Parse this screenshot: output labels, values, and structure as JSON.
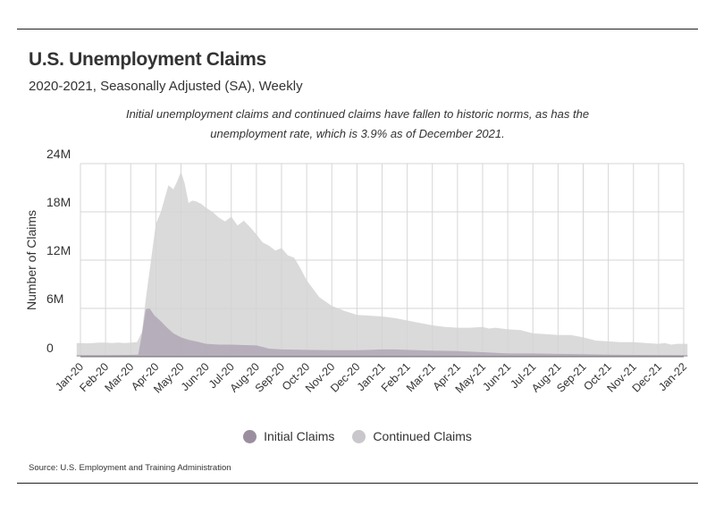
{
  "header": {
    "title": "U.S. Unemployment Claims",
    "subtitle": "2020-2021, Seasonally Adjusted (SA), Weekly",
    "annotation": "Initial unemployment claims and continued claims have fallen to historic norms, as has the unemployment rate, which is 3.9% as of December 2021."
  },
  "footer": {
    "source": "Source: U.S. Employment and Training Administration"
  },
  "colors": {
    "initial": "#b3a9b7",
    "continued": "#d4d4d4",
    "grid": "#d6d6d6",
    "axis": "#666666",
    "text": "#333333"
  },
  "chart_data": {
    "type": "area",
    "title": "U.S. Unemployment Claims",
    "subtitle": "2020-2021, Seasonally Adjusted (SA), Weekly",
    "xlabel": "",
    "ylabel": "Number of Claims",
    "ylim": [
      0,
      24
    ],
    "y_unit": "millions",
    "yticks": [
      0,
      6,
      12,
      18,
      24
    ],
    "ytick_labels": [
      "0",
      "6M",
      "12M",
      "18M",
      "24M"
    ],
    "x_range": [
      0,
      24
    ],
    "x_ticks": [
      0,
      1,
      2,
      3,
      4,
      5,
      6,
      7,
      8,
      9,
      10,
      11,
      12,
      13,
      14,
      15,
      16,
      17,
      18,
      19,
      20,
      21,
      22,
      23,
      24
    ],
    "x_tick_labels": [
      "Jan-20",
      "Feb-20",
      "Mar-20",
      "Apr-20",
      "May-20",
      "Jun-20",
      "Jul-20",
      "Aug-20",
      "Sep-20",
      "Oct-20",
      "Nov-20",
      "Dec-20",
      "Jan-21",
      "Feb-21",
      "Mar-21",
      "Apr-21",
      "May-21",
      "Jun-21",
      "Jul-21",
      "Aug-21",
      "Sep-21",
      "Oct-21",
      "Nov-21",
      "Dec-21",
      "Jan-22"
    ],
    "grid": true,
    "legend": "bottom-center",
    "series": [
      {
        "name": "Continued Claims",
        "x": [
          -0.15,
          0,
          0.25,
          0.5,
          0.75,
          1,
          1.25,
          1.5,
          1.75,
          2,
          2.25,
          2.45,
          2.6,
          2.8,
          3,
          3.2,
          3.5,
          3.7,
          3.85,
          4,
          4.15,
          4.3,
          4.45,
          4.6,
          4.8,
          5,
          5.25,
          5.5,
          5.75,
          6,
          6.25,
          6.5,
          6.75,
          7,
          7.25,
          7.5,
          7.75,
          8,
          8.25,
          8.5,
          8.75,
          9,
          9.5,
          10,
          10.5,
          11,
          11.5,
          12,
          12.5,
          13,
          13.5,
          14,
          14.5,
          15,
          15.5,
          16,
          16.25,
          16.5,
          17,
          17.5,
          18,
          18.5,
          19,
          19.5,
          20,
          20.5,
          21,
          21.5,
          22,
          22.5,
          23,
          23.25,
          23.5,
          23.75,
          24,
          24.15
        ],
        "values": [
          1.7,
          1.7,
          1.65,
          1.7,
          1.75,
          1.75,
          1.7,
          1.75,
          1.7,
          1.75,
          1.8,
          3.1,
          7.2,
          11.8,
          16.5,
          18.0,
          21.3,
          20.8,
          21.8,
          23.0,
          21.5,
          19.1,
          19.4,
          19.3,
          19.0,
          18.5,
          18.0,
          17.3,
          16.8,
          17.4,
          16.3,
          16.9,
          16.1,
          15.2,
          14.2,
          13.8,
          13.2,
          13.5,
          12.6,
          12.3,
          11.0,
          9.5,
          7.4,
          6.3,
          5.7,
          5.2,
          5.1,
          5.0,
          4.8,
          4.5,
          4.2,
          3.9,
          3.7,
          3.6,
          3.6,
          3.7,
          3.5,
          3.6,
          3.4,
          3.3,
          2.9,
          2.8,
          2.7,
          2.7,
          2.4,
          2.0,
          1.9,
          1.8,
          1.8,
          1.7,
          1.6,
          1.7,
          1.5,
          1.6,
          1.6,
          1.6
        ]
      },
      {
        "name": "Initial Claims",
        "x": [
          -0.15,
          0,
          1,
          2,
          2.3,
          2.45,
          2.6,
          2.75,
          2.95,
          3.2,
          3.45,
          3.7,
          4,
          4.3,
          4.6,
          5,
          5.5,
          6,
          6.5,
          7,
          7.5,
          8,
          9,
          10,
          11,
          11.5,
          12,
          12.5,
          13,
          14,
          15,
          16,
          17,
          18,
          19,
          20,
          21,
          22,
          23,
          24,
          24.15
        ],
        "values": [
          0.2,
          0.2,
          0.2,
          0.22,
          0.25,
          2.9,
          5.9,
          6.0,
          5.1,
          4.4,
          3.6,
          2.9,
          2.4,
          2.1,
          1.9,
          1.6,
          1.5,
          1.5,
          1.45,
          1.4,
          1.0,
          0.9,
          0.85,
          0.8,
          0.8,
          0.85,
          0.9,
          0.9,
          0.85,
          0.75,
          0.7,
          0.55,
          0.4,
          0.4,
          0.35,
          0.3,
          0.25,
          0.22,
          0.21,
          0.2,
          0.2
        ]
      }
    ]
  }
}
